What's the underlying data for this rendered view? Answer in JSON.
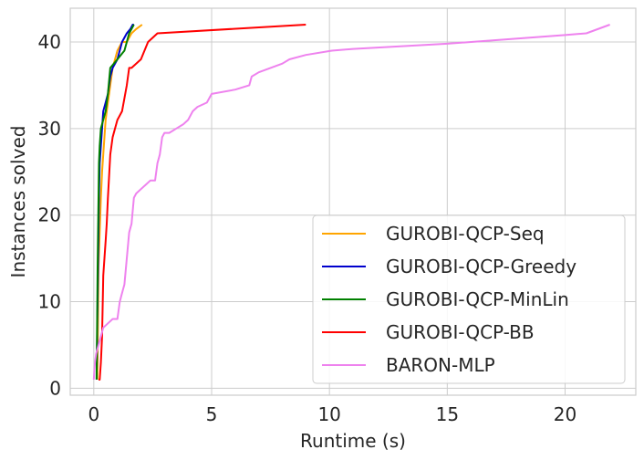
{
  "chart_data": {
    "type": "line",
    "title": "",
    "xlabel": "Runtime (s)",
    "ylabel": "Instances solved",
    "xlim": [
      -1.0,
      23.0
    ],
    "ylim": [
      -0.8,
      43.9
    ],
    "xticks": [
      0,
      5,
      10,
      15,
      20
    ],
    "yticks": [
      0,
      10,
      20,
      30,
      40
    ],
    "xtick_labels": [
      "0",
      "5",
      "10",
      "15",
      "20"
    ],
    "ytick_labels": [
      "0",
      "10",
      "20",
      "30",
      "40"
    ],
    "grid": true,
    "legend_position": "lower-right",
    "series": [
      {
        "name": "GUROBI-QCP-Seq",
        "color": "#ffa500",
        "x": [
          0.15,
          0.18,
          0.2,
          0.25,
          0.3,
          0.35,
          0.4,
          0.45,
          0.5,
          0.6,
          0.7,
          0.8,
          0.9,
          1.0,
          1.2,
          1.4,
          1.6,
          1.8,
          2.05
        ],
        "y": [
          1,
          8,
          14,
          18,
          22,
          25,
          27,
          29,
          31,
          33,
          35,
          37,
          38,
          39,
          40,
          40,
          41,
          41.5,
          42
        ]
      },
      {
        "name": "GUROBI-QCP-Greedy",
        "color": "#0000cd",
        "x": [
          0.12,
          0.15,
          0.18,
          0.2,
          0.22,
          0.25,
          0.3,
          0.35,
          0.4,
          0.5,
          0.6,
          0.7,
          0.8,
          1.0,
          1.2,
          1.4,
          1.55,
          1.65,
          1.7
        ],
        "y": [
          1,
          8,
          14,
          18,
          22,
          26,
          28,
          30,
          32,
          33,
          34,
          36,
          37,
          38,
          40,
          41,
          41.5,
          42,
          42
        ]
      },
      {
        "name": "GUROBI-QCP-MinLin",
        "color": "#008000",
        "x": [
          0.12,
          0.14,
          0.16,
          0.18,
          0.2,
          0.22,
          0.25,
          0.3,
          0.4,
          0.5,
          0.6,
          0.7,
          1.0,
          1.3,
          1.5,
          1.7
        ],
        "y": [
          1,
          8,
          14,
          18,
          22,
          26,
          28,
          30,
          31,
          32,
          34,
          37,
          38,
          39,
          41,
          42
        ]
      },
      {
        "name": "GUROBI-QCP-BB",
        "color": "#ff0000",
        "x": [
          0.2,
          0.25,
          0.3,
          0.35,
          0.4,
          0.45,
          0.5,
          0.55,
          0.6,
          0.7,
          0.8,
          0.9,
          1.0,
          1.2,
          1.4,
          1.5,
          1.6,
          2.0,
          2.3,
          2.7,
          9.0
        ],
        "y": [
          1,
          1,
          3,
          6,
          13,
          15,
          17,
          19,
          22,
          27,
          29,
          30,
          31,
          32,
          35,
          37,
          37,
          38,
          40,
          41,
          42
        ]
      },
      {
        "name": "BARON-MLP",
        "color": "#ee82ee",
        "x": [
          0.0,
          0.05,
          0.1,
          0.2,
          0.4,
          0.6,
          0.8,
          1.0,
          1.1,
          1.2,
          1.3,
          1.4,
          1.5,
          1.6,
          1.7,
          1.8,
          2.0,
          2.2,
          2.4,
          2.6,
          2.7,
          2.8,
          2.9,
          3.0,
          3.2,
          3.5,
          3.8,
          4.0,
          4.2,
          4.4,
          4.8,
          5.0,
          6.0,
          6.6,
          6.7,
          7.0,
          7.5,
          8.0,
          8.3,
          9.0,
          10.1,
          11.0,
          15.0,
          20.0,
          20.9,
          21.9
        ],
        "y": [
          1,
          3,
          4,
          5,
          7,
          7.5,
          8,
          8,
          10,
          11,
          12,
          15,
          18,
          19,
          22,
          22.5,
          23,
          23.5,
          24,
          24,
          26,
          27,
          29,
          29.5,
          29.5,
          30,
          30.5,
          31,
          32,
          32.5,
          33,
          34,
          34.5,
          35,
          36,
          36.5,
          37,
          37.5,
          38,
          38.5,
          39,
          39.2,
          39.8,
          40.8,
          41,
          42
        ]
      }
    ]
  }
}
